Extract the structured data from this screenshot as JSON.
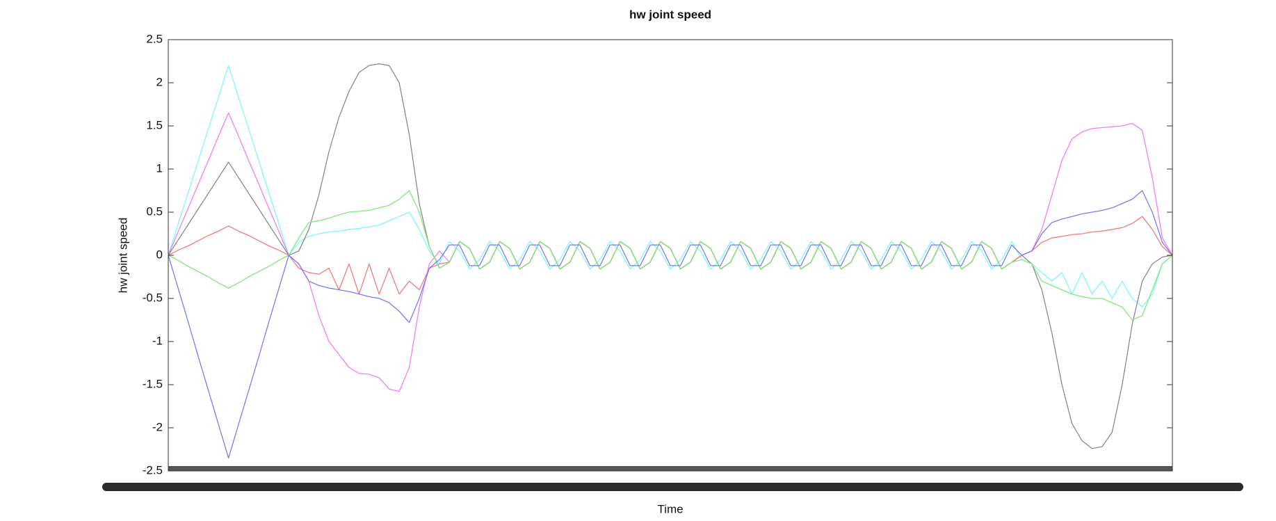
{
  "chart_data": {
    "type": "line",
    "title": "hw joint speed",
    "xlabel": "Time",
    "ylabel": "hw joint speed",
    "x": [
      0,
      1,
      2,
      3,
      4,
      5,
      6,
      7,
      8,
      9,
      10,
      11,
      12,
      13,
      14,
      15,
      16,
      17,
      18,
      19,
      20,
      21,
      22,
      23,
      24,
      25,
      26,
      27,
      28,
      29,
      30,
      31,
      32,
      33,
      34,
      35,
      36,
      37,
      38,
      39,
      40,
      41,
      42,
      43,
      44,
      45,
      46,
      47,
      48,
      49,
      50,
      51,
      52,
      53,
      54,
      55,
      56,
      57,
      58,
      59,
      60,
      61,
      62,
      63,
      64,
      65,
      66,
      67,
      68,
      69,
      70,
      71,
      72,
      73,
      74,
      75,
      76,
      77,
      78,
      79,
      80,
      81,
      82,
      83,
      84,
      85,
      86,
      87,
      88,
      89,
      90,
      91,
      92,
      93,
      94,
      95,
      96,
      97,
      98,
      99,
      100
    ],
    "xlim": [
      0,
      100
    ],
    "ylim": [
      -2.5,
      2.5
    ],
    "yticks": [
      -2.5,
      -2,
      -1.5,
      -1,
      -0.5,
      0,
      0.5,
      1,
      1.5,
      2,
      2.5
    ],
    "series": [
      {
        "color": "#7ff7f7",
        "values": [
          0,
          0.37,
          0.73,
          1.1,
          1.47,
          1.83,
          2.2,
          1.83,
          1.47,
          1.1,
          0.73,
          0.37,
          0,
          0.15,
          0.22,
          0.25,
          0.27,
          0.28,
          0.3,
          0.31,
          0.33,
          0.35,
          0.4,
          0.45,
          0.5,
          0.3,
          0.05,
          -0.1,
          0.16,
          0.05,
          -0.16,
          -0.05,
          0.16,
          0.05,
          -0.16,
          -0.05,
          0.16,
          0.05,
          -0.16,
          -0.05,
          0.16,
          0.05,
          -0.16,
          -0.05,
          0.16,
          0.05,
          -0.16,
          -0.05,
          0.16,
          0.05,
          -0.16,
          -0.05,
          0.16,
          0.05,
          -0.16,
          -0.05,
          0.16,
          0.05,
          -0.16,
          -0.05,
          0.16,
          0.05,
          -0.16,
          -0.05,
          0.16,
          0.05,
          -0.16,
          -0.05,
          0.16,
          0.05,
          -0.16,
          -0.05,
          0.16,
          0.05,
          -0.16,
          -0.05,
          0.16,
          0.05,
          -0.16,
          -0.05,
          0.16,
          0.05,
          -0.16,
          -0.05,
          0.16,
          -0.05,
          -0.1,
          -0.2,
          -0.3,
          -0.2,
          -0.45,
          -0.2,
          -0.45,
          -0.3,
          -0.5,
          -0.3,
          -0.5,
          -0.6,
          -0.45,
          -0.1,
          0
        ]
      },
      {
        "color": "#f57cf5",
        "values": [
          0,
          0.28,
          0.55,
          0.83,
          1.1,
          1.38,
          1.65,
          1.38,
          1.1,
          0.83,
          0.55,
          0.28,
          0,
          -0.1,
          -0.3,
          -0.7,
          -1.0,
          -1.15,
          -1.3,
          -1.37,
          -1.38,
          -1.42,
          -1.55,
          -1.58,
          -1.3,
          -0.6,
          -0.1,
          0.05,
          -0.08,
          0.16,
          0.08,
          -0.16,
          -0.08,
          0.16,
          0.08,
          -0.16,
          -0.08,
          0.16,
          0.08,
          -0.16,
          -0.08,
          0.16,
          0.08,
          -0.16,
          -0.08,
          0.16,
          0.08,
          -0.16,
          -0.08,
          0.16,
          0.08,
          -0.16,
          -0.08,
          0.16,
          0.08,
          -0.16,
          -0.08,
          0.16,
          0.08,
          -0.16,
          -0.08,
          0.16,
          0.08,
          -0.16,
          -0.08,
          0.16,
          0.08,
          -0.16,
          -0.08,
          0.16,
          0.08,
          -0.16,
          -0.08,
          0.16,
          0.08,
          -0.16,
          -0.08,
          0.16,
          0.08,
          -0.16,
          -0.08,
          0.16,
          0.08,
          -0.16,
          -0.08,
          0,
          0.05,
          0.3,
          0.7,
          1.1,
          1.35,
          1.43,
          1.47,
          1.48,
          1.49,
          1.5,
          1.53,
          1.45,
          0.9,
          0.2,
          0
        ]
      },
      {
        "color": "#8a8a8a",
        "values": [
          0,
          0.18,
          0.36,
          0.54,
          0.72,
          0.9,
          1.08,
          0.9,
          0.72,
          0.54,
          0.36,
          0.18,
          0,
          0.05,
          0.3,
          0.7,
          1.2,
          1.6,
          1.9,
          2.12,
          2.2,
          2.22,
          2.2,
          2.0,
          1.4,
          0.6,
          0.1,
          -0.15,
          -0.08,
          0.16,
          0.08,
          -0.16,
          -0.08,
          0.16,
          0.08,
          -0.16,
          -0.08,
          0.16,
          0.08,
          -0.16,
          -0.08,
          0.16,
          0.08,
          -0.16,
          -0.08,
          0.16,
          0.08,
          -0.16,
          -0.08,
          0.16,
          0.08,
          -0.16,
          -0.08,
          0.16,
          0.08,
          -0.16,
          -0.08,
          0.16,
          0.08,
          -0.16,
          -0.08,
          0.16,
          0.08,
          -0.16,
          -0.08,
          0.16,
          0.08,
          -0.16,
          -0.08,
          0.16,
          0.08,
          -0.16,
          -0.08,
          0.16,
          0.08,
          -0.16,
          -0.08,
          0.16,
          0.08,
          -0.16,
          -0.08,
          0.16,
          0.08,
          -0.16,
          -0.08,
          0,
          -0.1,
          -0.4,
          -0.9,
          -1.5,
          -1.95,
          -2.15,
          -2.24,
          -2.22,
          -2.05,
          -1.5,
          -0.8,
          -0.3,
          -0.1,
          -0.02,
          0
        ]
      },
      {
        "color": "#f57a7a",
        "values": [
          0,
          0.06,
          0.11,
          0.17,
          0.23,
          0.28,
          0.34,
          0.28,
          0.23,
          0.17,
          0.11,
          0.06,
          0,
          -0.15,
          -0.2,
          -0.22,
          -0.15,
          -0.4,
          -0.1,
          -0.45,
          -0.1,
          -0.45,
          -0.15,
          -0.45,
          -0.3,
          -0.4,
          -0.15,
          -0.1,
          -0.08,
          0.16,
          0.08,
          -0.16,
          -0.08,
          0.16,
          0.08,
          -0.16,
          -0.08,
          0.16,
          0.08,
          -0.16,
          -0.08,
          0.16,
          0.08,
          -0.16,
          -0.08,
          0.16,
          0.08,
          -0.16,
          -0.08,
          0.16,
          0.08,
          -0.16,
          -0.08,
          0.16,
          0.08,
          -0.16,
          -0.08,
          0.16,
          0.08,
          -0.16,
          -0.08,
          0.16,
          0.08,
          -0.16,
          -0.08,
          0.16,
          0.08,
          -0.16,
          -0.08,
          0.16,
          0.08,
          -0.16,
          -0.08,
          0.16,
          0.08,
          -0.16,
          -0.08,
          0.16,
          0.08,
          -0.16,
          -0.08,
          0.16,
          0.08,
          -0.16,
          -0.08,
          0,
          0.05,
          0.15,
          0.2,
          0.22,
          0.24,
          0.25,
          0.27,
          0.28,
          0.3,
          0.32,
          0.37,
          0.45,
          0.3,
          0.1,
          0
        ]
      },
      {
        "color": "#7ee87e",
        "values": [
          0,
          -0.06,
          -0.13,
          -0.19,
          -0.25,
          -0.32,
          -0.38,
          -0.32,
          -0.25,
          -0.19,
          -0.13,
          -0.06,
          0,
          0.2,
          0.38,
          0.4,
          0.43,
          0.47,
          0.5,
          0.51,
          0.52,
          0.55,
          0.58,
          0.65,
          0.75,
          0.5,
          0.1,
          -0.15,
          -0.08,
          0.16,
          0.08,
          -0.16,
          -0.08,
          0.16,
          0.08,
          -0.16,
          -0.08,
          0.16,
          0.08,
          -0.16,
          -0.08,
          0.16,
          0.08,
          -0.16,
          -0.08,
          0.16,
          0.08,
          -0.16,
          -0.08,
          0.16,
          0.08,
          -0.16,
          -0.08,
          0.16,
          0.08,
          -0.16,
          -0.08,
          0.16,
          0.08,
          -0.16,
          -0.08,
          0.16,
          0.08,
          -0.16,
          -0.08,
          0.16,
          0.08,
          -0.16,
          -0.08,
          0.16,
          0.08,
          -0.16,
          -0.08,
          0.16,
          0.08,
          -0.16,
          -0.08,
          0.16,
          0.08,
          -0.16,
          -0.08,
          0.16,
          0.08,
          -0.16,
          -0.08,
          -0.05,
          -0.1,
          -0.3,
          -0.35,
          -0.4,
          -0.45,
          -0.48,
          -0.5,
          -0.5,
          -0.55,
          -0.6,
          -0.75,
          -0.7,
          -0.4,
          -0.1,
          0
        ]
      },
      {
        "color": "#7a7af5",
        "values": [
          0,
          -0.39,
          -0.78,
          -1.18,
          -1.57,
          -1.96,
          -2.35,
          -1.96,
          -1.57,
          -1.18,
          -0.78,
          -0.39,
          0,
          -0.1,
          -0.3,
          -0.35,
          -0.38,
          -0.4,
          -0.42,
          -0.45,
          -0.48,
          -0.5,
          -0.55,
          -0.65,
          -0.78,
          -0.5,
          -0.15,
          -0.05,
          0.12,
          0.12,
          -0.12,
          -0.12,
          0.12,
          0.12,
          -0.12,
          -0.12,
          0.12,
          0.12,
          -0.12,
          -0.12,
          0.12,
          0.12,
          -0.12,
          -0.12,
          0.12,
          0.12,
          -0.12,
          -0.12,
          0.12,
          0.12,
          -0.12,
          -0.12,
          0.12,
          0.12,
          -0.12,
          -0.12,
          0.12,
          0.12,
          -0.12,
          -0.12,
          0.12,
          0.12,
          -0.12,
          -0.12,
          0.12,
          0.12,
          -0.12,
          -0.12,
          0.12,
          0.12,
          -0.12,
          -0.12,
          0.12,
          0.12,
          -0.12,
          -0.12,
          0.12,
          0.12,
          -0.12,
          -0.12,
          0.12,
          0.12,
          -0.12,
          -0.12,
          0.12,
          0,
          0.05,
          0.25,
          0.38,
          0.42,
          0.45,
          0.48,
          0.5,
          0.52,
          0.55,
          0.6,
          0.65,
          0.75,
          0.5,
          0.15,
          0
        ]
      }
    ]
  }
}
